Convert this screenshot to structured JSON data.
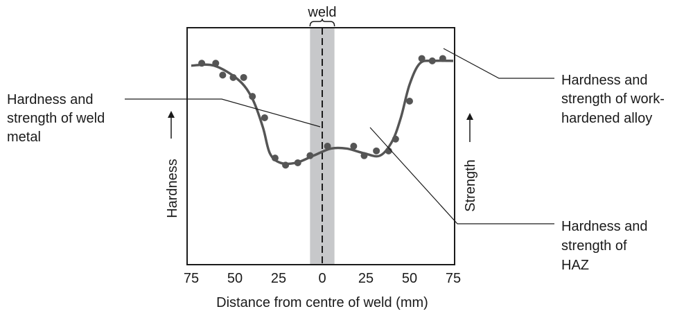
{
  "chart_data": {
    "type": "scatter",
    "xlabel": "Distance from centre of weld (mm)",
    "ylabel_left": "Hardness",
    "ylabel_right": "Strength",
    "weld_label": "weld",
    "x_tick_labels": [
      "75",
      "50",
      "25",
      "0",
      "25",
      "50",
      "75"
    ],
    "x_ticks": [
      -75,
      -50,
      -25,
      0,
      25,
      50,
      75
    ],
    "xlim": [
      -75,
      75
    ],
    "weld_zone_halfwidth": 7,
    "annotations": {
      "weld_metal": [
        "Hardness and",
        "strength of weld",
        "metal"
      ],
      "work_hardened": [
        "Hardness and",
        "strength of work-",
        "hardened alloy"
      ],
      "haz": [
        "Hardness and",
        "strength of",
        "HAZ"
      ]
    },
    "points": [
      {
        "x": -69,
        "y": 0.85
      },
      {
        "x": -61,
        "y": 0.85
      },
      {
        "x": -57,
        "y": 0.8
      },
      {
        "x": -51,
        "y": 0.79
      },
      {
        "x": -45,
        "y": 0.79
      },
      {
        "x": -40,
        "y": 0.71
      },
      {
        "x": -33,
        "y": 0.62
      },
      {
        "x": -27,
        "y": 0.45
      },
      {
        "x": -21,
        "y": 0.42
      },
      {
        "x": -14,
        "y": 0.43
      },
      {
        "x": -7,
        "y": 0.46
      },
      {
        "x": 3,
        "y": 0.5
      },
      {
        "x": 18,
        "y": 0.5
      },
      {
        "x": 24,
        "y": 0.46
      },
      {
        "x": 31,
        "y": 0.48
      },
      {
        "x": 38,
        "y": 0.48
      },
      {
        "x": 42,
        "y": 0.53
      },
      {
        "x": 50,
        "y": 0.69
      },
      {
        "x": 57,
        "y": 0.87
      },
      {
        "x": 63,
        "y": 0.86
      },
      {
        "x": 69,
        "y": 0.87
      }
    ],
    "curve": [
      {
        "x": -75,
        "y": 0.84
      },
      {
        "x": -62,
        "y": 0.84
      },
      {
        "x": -48,
        "y": 0.78
      },
      {
        "x": -40,
        "y": 0.7
      },
      {
        "x": -34,
        "y": 0.58
      },
      {
        "x": -30,
        "y": 0.47
      },
      {
        "x": -24,
        "y": 0.43
      },
      {
        "x": -15,
        "y": 0.43
      },
      {
        "x": -5,
        "y": 0.46
      },
      {
        "x": 5,
        "y": 0.49
      },
      {
        "x": 14,
        "y": 0.49
      },
      {
        "x": 24,
        "y": 0.47
      },
      {
        "x": 33,
        "y": 0.46
      },
      {
        "x": 40,
        "y": 0.52
      },
      {
        "x": 45,
        "y": 0.62
      },
      {
        "x": 50,
        "y": 0.76
      },
      {
        "x": 56,
        "y": 0.85
      },
      {
        "x": 64,
        "y": 0.86
      },
      {
        "x": 75,
        "y": 0.86
      }
    ],
    "colors": {
      "curve": "#555555",
      "points": "#555555",
      "weld_zone": "#c7c8ca",
      "frame": "#1a1a1a",
      "leader": "#1a1a1a"
    }
  }
}
